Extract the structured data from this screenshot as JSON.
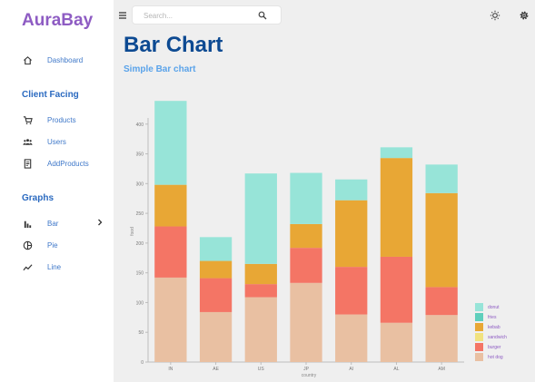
{
  "brand": "AuraBay",
  "sidebar": {
    "dashboard": {
      "label": "Dashboard",
      "icon": "home-icon"
    },
    "client_facing_title": "Client Facing",
    "products": {
      "label": "Products",
      "icon": "cart-icon"
    },
    "users": {
      "label": "Users",
      "icon": "users-icon"
    },
    "add_products": {
      "label": "AddProducts",
      "icon": "receipt-icon"
    },
    "graphs_title": "Graphs",
    "bar": {
      "label": "Bar",
      "icon": "bar-chart-icon"
    },
    "pie": {
      "label": "Pie",
      "icon": "pie-chart-icon"
    },
    "line": {
      "label": "Line",
      "icon": "line-chart-icon"
    }
  },
  "search": {
    "placeholder": "Search..."
  },
  "page": {
    "title": "Bar Chart",
    "subtitle": "Simple Bar chart"
  },
  "colors": {
    "brand": "#8e5cc3",
    "nav_text": "#3f78c9",
    "title": "#0d4a92",
    "subtitle": "#5aa3ea"
  },
  "chart_data": {
    "type": "bar",
    "stacked": true,
    "xlabel": "country",
    "ylabel": "food",
    "ylim": [
      0,
      450
    ],
    "yticks": [
      0,
      50,
      100,
      150,
      200,
      250,
      300,
      350,
      400
    ],
    "grid": false,
    "legend_position": "bottom-right",
    "categories": [
      "IN",
      "AE",
      "US",
      "JP",
      "AI",
      "AL",
      "AM"
    ],
    "series": [
      {
        "name": "hot dog",
        "color": "#e9c0a2",
        "values": [
          142,
          84,
          109,
          133,
          80,
          66,
          79
        ]
      },
      {
        "name": "burger",
        "color": "#f47565",
        "values": [
          86,
          57,
          22,
          59,
          80,
          111,
          47
        ]
      },
      {
        "name": "sandwich",
        "color": "#f1e27f",
        "values": [
          0,
          0,
          0,
          0,
          0,
          0,
          0
        ]
      },
      {
        "name": "kebab",
        "color": "#e8a735",
        "values": [
          70,
          29,
          34,
          40,
          112,
          166,
          158
        ]
      },
      {
        "name": "fries",
        "color": "#5fcfbc",
        "values": [
          0,
          0,
          0,
          0,
          0,
          0,
          0
        ]
      },
      {
        "name": "donut",
        "color": "#97e4d8",
        "values": [
          141,
          40,
          152,
          86,
          35,
          18,
          48
        ]
      }
    ]
  }
}
